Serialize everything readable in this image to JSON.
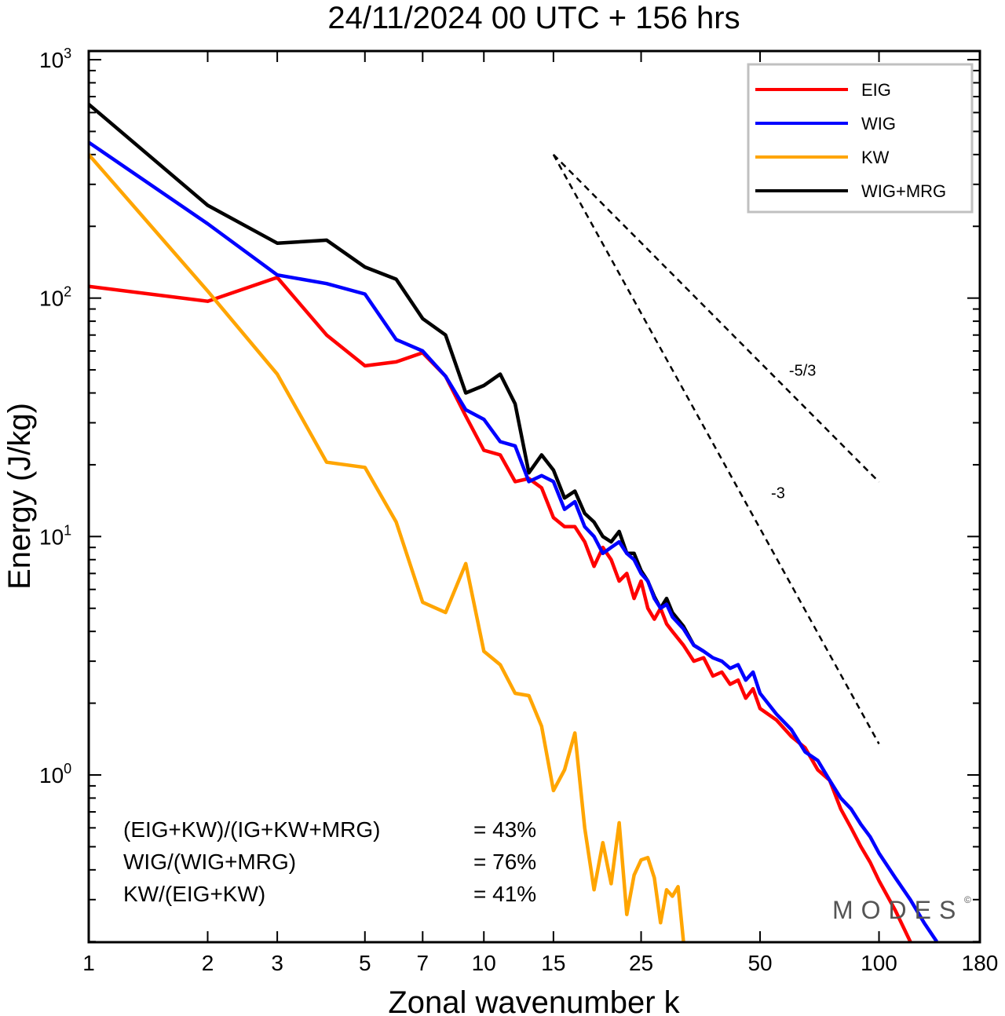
{
  "chart_data": {
    "type": "line",
    "title": "24/11/2024  00 UTC  + 156 hrs",
    "xlabel": "Zonal wavenumber k",
    "ylabel": "Energy (J/kg)",
    "xscale": "log",
    "yscale": "log",
    "xlim": [
      1,
      180
    ],
    "ylim": [
      0.2,
      1000
    ],
    "x_ticks": [
      "1",
      "2",
      "3",
      "5",
      "7",
      "10",
      "15",
      "25",
      "50",
      "100",
      "180"
    ],
    "y_ticks": [
      {
        "base": "10",
        "exp": "0"
      },
      {
        "base": "10",
        "exp": "1"
      },
      {
        "base": "10",
        "exp": "2"
      },
      {
        "base": "10",
        "exp": "3"
      }
    ],
    "legend_position": "top-right",
    "series": [
      {
        "name": "EIG",
        "color": "#ff0000",
        "points": [
          [
            1,
            112
          ],
          [
            2,
            97
          ],
          [
            3,
            122
          ],
          [
            4,
            70
          ],
          [
            5,
            52
          ],
          [
            6,
            54
          ],
          [
            7,
            59
          ],
          [
            8,
            47
          ],
          [
            9,
            32
          ],
          [
            10,
            23
          ],
          [
            11,
            22
          ],
          [
            12,
            17
          ],
          [
            13,
            17.5
          ],
          [
            14,
            16
          ],
          [
            15,
            12
          ],
          [
            16,
            11
          ],
          [
            17,
            11
          ],
          [
            18,
            9.5
          ],
          [
            19,
            7.5
          ],
          [
            20,
            9
          ],
          [
            21,
            8
          ],
          [
            22,
            6.5
          ],
          [
            23,
            7
          ],
          [
            24,
            5.5
          ],
          [
            25,
            6.5
          ],
          [
            26,
            5
          ],
          [
            27,
            4.5
          ],
          [
            28,
            5
          ],
          [
            29,
            4.3
          ],
          [
            30,
            4
          ],
          [
            32,
            3.5
          ],
          [
            34,
            3
          ],
          [
            36,
            3.1
          ],
          [
            38,
            2.6
          ],
          [
            40,
            2.7
          ],
          [
            42,
            2.4
          ],
          [
            44,
            2.5
          ],
          [
            46,
            2.1
          ],
          [
            48,
            2.3
          ],
          [
            50,
            1.9
          ],
          [
            55,
            1.7
          ],
          [
            60,
            1.45
          ],
          [
            65,
            1.3
          ],
          [
            70,
            1.05
          ],
          [
            75,
            0.95
          ],
          [
            80,
            0.72
          ],
          [
            85,
            0.6
          ],
          [
            90,
            0.5
          ],
          [
            95,
            0.43
          ],
          [
            100,
            0.36
          ],
          [
            110,
            0.27
          ],
          [
            120,
            0.2
          ]
        ]
      },
      {
        "name": "WIG",
        "color": "#0000ff",
        "points": [
          [
            1,
            450
          ],
          [
            2,
            205
          ],
          [
            3,
            125
          ],
          [
            4,
            115
          ],
          [
            5,
            104
          ],
          [
            6,
            67
          ],
          [
            7,
            60
          ],
          [
            8,
            47
          ],
          [
            9,
            34
          ],
          [
            10,
            31
          ],
          [
            11,
            25
          ],
          [
            12,
            24
          ],
          [
            13,
            17
          ],
          [
            14,
            18
          ],
          [
            15,
            17
          ],
          [
            16,
            13
          ],
          [
            17,
            14
          ],
          [
            18,
            11
          ],
          [
            19,
            10
          ],
          [
            20,
            8.5
          ],
          [
            21,
            9
          ],
          [
            22,
            9.5
          ],
          [
            23,
            8.5
          ],
          [
            24,
            8
          ],
          [
            25,
            7
          ],
          [
            26,
            6.5
          ],
          [
            27,
            5.5
          ],
          [
            28,
            5
          ],
          [
            29,
            5.2
          ],
          [
            30,
            4.6
          ],
          [
            32,
            4.1
          ],
          [
            34,
            3.5
          ],
          [
            36,
            3.3
          ],
          [
            38,
            3.1
          ],
          [
            40,
            3
          ],
          [
            42,
            2.8
          ],
          [
            44,
            2.9
          ],
          [
            46,
            2.5
          ],
          [
            48,
            2.7
          ],
          [
            50,
            2.2
          ],
          [
            55,
            1.8
          ],
          [
            60,
            1.55
          ],
          [
            65,
            1.25
          ],
          [
            70,
            1.15
          ],
          [
            75,
            0.95
          ],
          [
            80,
            0.8
          ],
          [
            85,
            0.72
          ],
          [
            90,
            0.62
          ],
          [
            95,
            0.55
          ],
          [
            100,
            0.47
          ],
          [
            110,
            0.37
          ],
          [
            120,
            0.3
          ],
          [
            130,
            0.24
          ],
          [
            140,
            0.2
          ]
        ]
      },
      {
        "name": "KW",
        "color": "#ffa500",
        "points": [
          [
            1,
            400
          ],
          [
            2,
            107
          ],
          [
            3,
            48
          ],
          [
            4,
            20.5
          ],
          [
            5,
            19.5
          ],
          [
            6,
            11.5
          ],
          [
            7,
            5.3
          ],
          [
            8,
            4.8
          ],
          [
            9,
            7.7
          ],
          [
            10,
            3.3
          ],
          [
            11,
            2.9
          ],
          [
            12,
            2.2
          ],
          [
            13,
            2.15
          ],
          [
            14,
            1.6
          ],
          [
            15,
            0.86
          ],
          [
            16,
            1.05
          ],
          [
            17,
            1.5
          ],
          [
            18,
            0.6
          ],
          [
            19,
            0.33
          ],
          [
            20,
            0.52
          ],
          [
            21,
            0.35
          ],
          [
            22,
            0.63
          ],
          [
            23,
            0.26
          ],
          [
            24,
            0.38
          ],
          [
            25,
            0.44
          ],
          [
            26,
            0.45
          ],
          [
            27,
            0.37
          ],
          [
            28,
            0.24
          ],
          [
            29,
            0.33
          ],
          [
            30,
            0.31
          ],
          [
            31,
            0.34
          ],
          [
            32,
            0.2
          ]
        ]
      },
      {
        "name": "WIG+MRG",
        "color": "#000000",
        "points": [
          [
            1,
            650
          ],
          [
            2,
            245
          ],
          [
            3,
            170
          ],
          [
            4,
            175
          ],
          [
            5,
            135
          ],
          [
            6,
            120
          ],
          [
            7,
            82
          ],
          [
            8,
            70
          ],
          [
            9,
            40
          ],
          [
            10,
            43
          ],
          [
            11,
            48
          ],
          [
            12,
            36
          ],
          [
            13,
            18.5
          ],
          [
            14,
            22
          ],
          [
            15,
            19
          ],
          [
            16,
            14.5
          ],
          [
            17,
            15.5
          ],
          [
            18,
            12.5
          ],
          [
            19,
            11.5
          ],
          [
            20,
            10
          ],
          [
            21,
            9.5
          ],
          [
            22,
            10.5
          ],
          [
            23,
            8.5
          ],
          [
            24,
            8.5
          ],
          [
            25,
            7.2
          ],
          [
            26,
            6.5
          ],
          [
            27,
            5.6
          ],
          [
            28,
            5
          ],
          [
            29,
            5.5
          ],
          [
            30,
            4.8
          ],
          [
            32,
            4.2
          ],
          [
            34,
            3.5
          ],
          [
            36,
            3.3
          ]
        ]
      }
    ],
    "slope_guides": [
      {
        "label": "-5/3",
        "slope": -1.6667,
        "from_k": 15,
        "to_k": 100,
        "from_energy": 400
      },
      {
        "label": "-3",
        "slope": -3,
        "from_k": 15,
        "to_k": 100,
        "from_energy": 400
      }
    ],
    "ratios": [
      {
        "label": "(EIG+KW)/(IG+KW+MRG)",
        "value": "= 43%"
      },
      {
        "label": "WIG/(WIG+MRG)",
        "value": "= 76%"
      },
      {
        "label": "KW/(EIG+KW)",
        "value": "= 41%"
      }
    ],
    "watermark": "MODES",
    "watermark_mark": "©"
  }
}
